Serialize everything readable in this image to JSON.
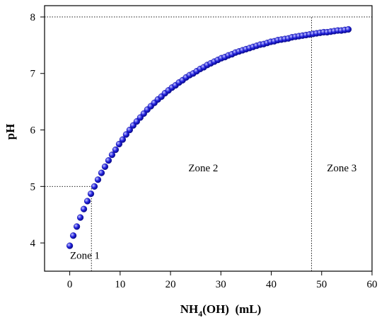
{
  "chart_data": {
    "type": "scatter",
    "title": "",
    "xlabel_main": "NH",
    "xlabel_sub": "4",
    "xlabel_rest": "(OH)  (mL)",
    "ylabel": "pH",
    "xlim": [
      -5,
      60
    ],
    "ylim": [
      3.5,
      8.2
    ],
    "xticks": [
      0,
      10,
      20,
      30,
      40,
      50,
      60
    ],
    "yticks": [
      4,
      5,
      6,
      7,
      8
    ],
    "grid": false,
    "marker_color": "#2323e0",
    "marker_highlight": "#c8c8ff",
    "marker_edge": "#0a0a8c",
    "reference_lines": [
      {
        "name": "ph-5-line",
        "orientation": "horizontal",
        "y": 5,
        "x_from": -5,
        "x_to": 4.3
      },
      {
        "name": "ph-8-line",
        "orientation": "horizontal",
        "y": 8,
        "x_from": -5,
        "x_to": 60
      },
      {
        "name": "zone-1-boundary",
        "orientation": "vertical",
        "x": 4.3,
        "y_from": 3.5,
        "y_to": 5
      },
      {
        "name": "zone-3-boundary",
        "orientation": "vertical",
        "x": 48,
        "y_from": 3.5,
        "y_to": 8
      }
    ],
    "annotations": [
      {
        "name": "zone-1-label",
        "text": "Zone 1",
        "x": 3,
        "y": 3.72
      },
      {
        "name": "zone-2-label",
        "text": "Zone 2",
        "x": 26.5,
        "y": 5.27
      },
      {
        "name": "zone-3-label",
        "text": "Zone 3",
        "x": 54,
        "y": 5.27
      }
    ],
    "x": [
      0,
      0.7,
      1.4,
      2.1,
      2.8,
      3.5,
      4.2,
      4.9,
      5.6,
      6.3,
      7,
      7.7,
      8.4,
      9.1,
      9.8,
      10.5,
      11.2,
      11.9,
      12.6,
      13.3,
      14,
      14.7,
      15.4,
      16.1,
      16.8,
      17.5,
      18.2,
      18.9,
      19.6,
      20.3,
      21,
      21.7,
      22.4,
      23.1,
      23.8,
      24.5,
      25.2,
      25.9,
      26.6,
      27.3,
      28,
      28.7,
      29.4,
      30.1,
      30.8,
      31.5,
      32.2,
      32.9,
      33.6,
      34.3,
      35,
      35.7,
      36.4,
      37.1,
      37.8,
      38.5,
      39.2,
      39.9,
      40.6,
      41.3,
      42,
      42.7,
      43.4,
      44.1,
      44.8,
      45.5,
      46.2,
      46.9,
      47.6,
      48.3,
      49,
      49.7,
      50.4,
      51.1,
      51.8,
      52.5,
      53.2,
      53.9,
      54.6,
      55.3
    ],
    "y": [
      3.95,
      4.13,
      4.29,
      4.45,
      4.6,
      4.74,
      4.87,
      5.0,
      5.12,
      5.24,
      5.35,
      5.46,
      5.56,
      5.65,
      5.75,
      5.83,
      5.92,
      6.0,
      6.08,
      6.15,
      6.22,
      6.29,
      6.36,
      6.42,
      6.48,
      6.54,
      6.59,
      6.65,
      6.7,
      6.75,
      6.79,
      6.84,
      6.88,
      6.93,
      6.97,
      7.0,
      7.04,
      7.08,
      7.11,
      7.15,
      7.18,
      7.21,
      7.24,
      7.27,
      7.29,
      7.32,
      7.34,
      7.37,
      7.39,
      7.41,
      7.43,
      7.45,
      7.47,
      7.49,
      7.51,
      7.52,
      7.54,
      7.56,
      7.57,
      7.59,
      7.6,
      7.61,
      7.62,
      7.64,
      7.65,
      7.66,
      7.67,
      7.68,
      7.69,
      7.7,
      7.71,
      7.72,
      7.73,
      7.73,
      7.74,
      7.75,
      7.76,
      7.76,
      7.77,
      7.78
    ]
  }
}
